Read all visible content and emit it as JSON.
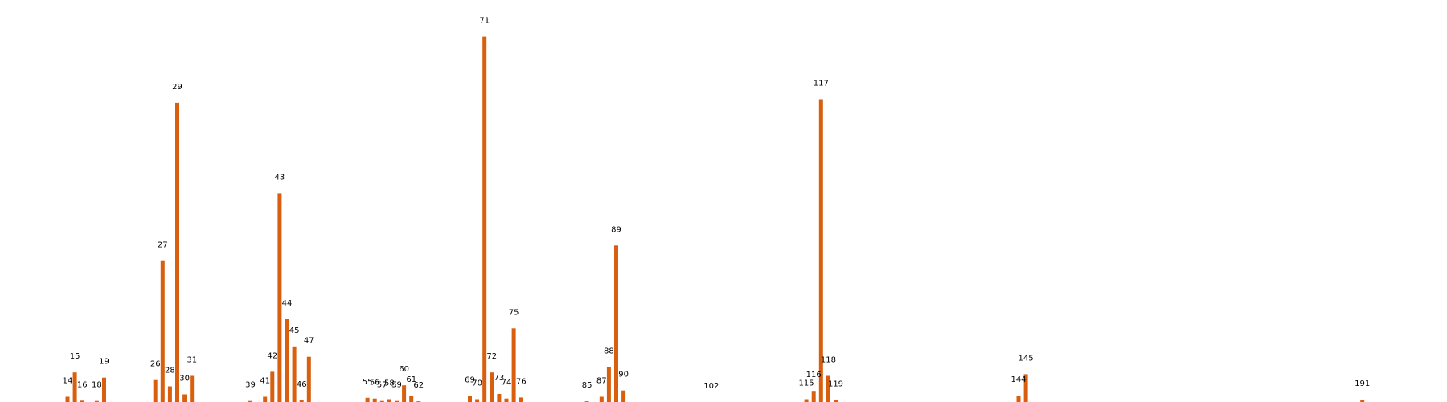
{
  "chart_data": {
    "type": "bar",
    "title": "",
    "xlabel": "",
    "ylabel": "",
    "bar_color": "#D95F0E",
    "grid": false,
    "axes_visible": false,
    "x": [
      14,
      15,
      16,
      18,
      19,
      26,
      27,
      28,
      29,
      30,
      31,
      39,
      41,
      42,
      43,
      44,
      45,
      46,
      47,
      55,
      56,
      57,
      58,
      59,
      60,
      61,
      62,
      69,
      70,
      71,
      72,
      73,
      74,
      75,
      76,
      85,
      87,
      88,
      89,
      90,
      102,
      115,
      116,
      117,
      118,
      119,
      144,
      145,
      191
    ],
    "labels": [
      "14",
      "15",
      "16",
      "18",
      "19",
      "26",
      "27",
      "28",
      "29",
      "30",
      "31",
      "39",
      "41",
      "42",
      "43",
      "44",
      "45",
      "46",
      "47",
      "55",
      "56",
      "57",
      "58",
      "59",
      "60",
      "61",
      "62",
      "69",
      "70",
      "71",
      "72",
      "73",
      "74",
      "75",
      "76",
      "85",
      "87",
      "88",
      "89",
      "90",
      "102",
      "115",
      "116",
      "117",
      "118",
      "119",
      "144",
      "145",
      "191"
    ],
    "values": [
      1.5,
      8.5,
      0.4,
      0.3,
      7,
      6.3,
      40.5,
      4.5,
      86,
      2.2,
      7.5,
      0.3,
      1.5,
      8.7,
      60,
      23.8,
      16,
      0.5,
      13,
      1.2,
      1,
      0.3,
      0.8,
      0.3,
      4.8,
      1.8,
      0.2,
      1.7,
      0.8,
      105,
      8.5,
      2.3,
      1,
      21.2,
      1.3,
      0.2,
      1.5,
      10,
      45,
      3.3,
      0,
      0.8,
      3.2,
      87,
      7.5,
      0.6,
      1.8,
      8,
      0.7
    ],
    "xlim": [
      5,
      200
    ],
    "ylim": [
      0,
      110
    ]
  }
}
